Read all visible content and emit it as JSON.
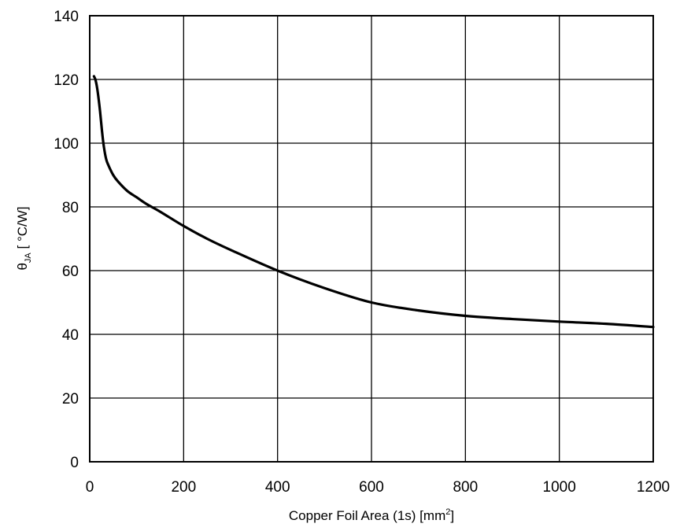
{
  "chart_data": {
    "type": "line",
    "xlabel": {
      "main": "Copper Foil Area (1s) [mm",
      "sup": "2",
      "end": "]"
    },
    "ylabel": {
      "main": "θ",
      "sub": "JA",
      "end": " [ °C/W]"
    },
    "xlim": [
      0,
      1200
    ],
    "ylim": [
      0,
      140
    ],
    "x_ticks": [
      "0",
      "200",
      "400",
      "600",
      "800",
      "1000",
      "1200"
    ],
    "y_ticks": [
      "0",
      "20",
      "40",
      "60",
      "80",
      "100",
      "120",
      "140"
    ],
    "grid": true,
    "line_color": "#000000",
    "series": [
      {
        "x": [
          9,
          12,
          15,
          18,
          22,
          26,
          30,
          35,
          40,
          50,
          60,
          80,
          100,
          120,
          150,
          200,
          250,
          300,
          400,
          500,
          600,
          700,
          800,
          900,
          1000,
          1100,
          1200
        ],
        "y": [
          121,
          120,
          118,
          115,
          110,
          104,
          99,
          95,
          93,
          90,
          88,
          85,
          83,
          81,
          78.5,
          74,
          70,
          66.5,
          60,
          54.5,
          50,
          47.5,
          45.8,
          44.8,
          44,
          43.3,
          42.3
        ]
      }
    ]
  }
}
